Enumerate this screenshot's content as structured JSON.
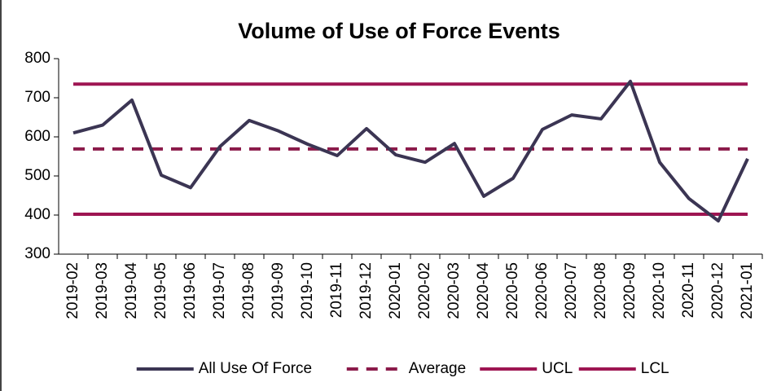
{
  "chart_data": {
    "type": "line",
    "title": "Volume of Use of Force Events",
    "categories": [
      "2019-02",
      "2019-03",
      "2019-04",
      "2019-05",
      "2019-06",
      "2019-07",
      "2019-08",
      "2019-09",
      "2019-10",
      "2019-11",
      "2019-12",
      "2020-01",
      "2020-02",
      "2020-03",
      "2020-04",
      "2020-05",
      "2020-06",
      "2020-07",
      "2020-08",
      "2020-09",
      "2020-10",
      "2020-11",
      "2020-12",
      "2021-01"
    ],
    "series": [
      {
        "name": "All Use Of Force",
        "color": "#3b3553",
        "style": "solid",
        "values": [
          610,
          630,
          694,
          502,
          470,
          575,
          642,
          615,
          581,
          552,
          621,
          554,
          535,
          583,
          448,
          494,
          619,
          656,
          646,
          742,
          535,
          442,
          385,
          544
        ]
      },
      {
        "name": "Average",
        "color": "#8b1a4a",
        "style": "dashed",
        "values": [
          569,
          569,
          569,
          569,
          569,
          569,
          569,
          569,
          569,
          569,
          569,
          569,
          569,
          569,
          569,
          569,
          569,
          569,
          569,
          569,
          569,
          569,
          569,
          569
        ]
      },
      {
        "name": "UCL",
        "color": "#9e1552",
        "style": "solid",
        "values": [
          735,
          735,
          735,
          735,
          735,
          735,
          735,
          735,
          735,
          735,
          735,
          735,
          735,
          735,
          735,
          735,
          735,
          735,
          735,
          735,
          735,
          735,
          735,
          735
        ]
      },
      {
        "name": "LCL",
        "color": "#9e1552",
        "style": "solid",
        "values": [
          402,
          402,
          402,
          402,
          402,
          402,
          402,
          402,
          402,
          402,
          402,
          402,
          402,
          402,
          402,
          402,
          402,
          402,
          402,
          402,
          402,
          402,
          402,
          402
        ]
      }
    ],
    "ylim": [
      300,
      800
    ],
    "yticks": [
      300,
      400,
      500,
      600,
      700,
      800
    ],
    "legend": "bottom"
  }
}
